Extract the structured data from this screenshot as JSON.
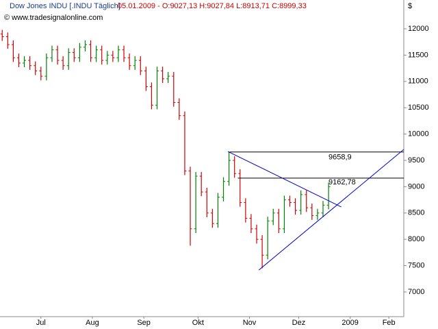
{
  "chart_data": {
    "type": "ohlc",
    "title": "Dow Jones INDU [.INDU  Täglich]",
    "subtitle": "05.01.2009 - O:9027,13 H:9027,84 L:8913,71 C:8999,33",
    "source": "© www.tradesignalonline.com",
    "y_unit": "$",
    "categories": [
      null,
      null,
      null,
      null,
      null,
      null,
      null,
      null,
      null,
      null,
      null,
      null,
      null,
      null,
      null,
      null,
      null,
      null,
      null,
      null,
      null,
      null,
      null,
      null,
      null,
      null,
      null,
      null,
      null,
      null,
      null,
      null,
      null,
      null,
      null,
      null,
      null,
      null,
      null,
      null,
      null,
      null,
      null,
      null,
      null,
      null,
      null,
      null,
      null,
      null,
      null,
      null,
      null,
      null,
      null,
      null,
      null,
      null,
      null,
      null
    ],
    "open": [
      11900,
      11850,
      11700,
      11450,
      11350,
      11400,
      11300,
      11200,
      11100,
      11450,
      11600,
      11400,
      11300,
      11550,
      11450,
      11650,
      11700,
      11450,
      11600,
      11400,
      11500,
      11450,
      11600,
      11450,
      11300,
      11400,
      11200,
      10900,
      10550,
      11200,
      11050,
      11100,
      10600,
      10350,
      9300,
      8200,
      9200,
      8900,
      8500,
      8300,
      8800,
      9100,
      9500,
      9250,
      8700,
      8400,
      8200,
      8000,
      7700,
      8350,
      8500,
      8200,
      8750,
      8700,
      8550,
      8850,
      8600,
      8450,
      8500,
      8650
    ],
    "high": [
      11980,
      11930,
      11780,
      11530,
      11480,
      11480,
      11380,
      11280,
      11530,
      11680,
      11680,
      11480,
      11630,
      11630,
      11730,
      11780,
      11780,
      11680,
      11680,
      11580,
      11580,
      11680,
      11680,
      11530,
      11480,
      11480,
      11280,
      10980,
      11280,
      11280,
      11180,
      11180,
      10680,
      10430,
      9380,
      9280,
      9280,
      8980,
      8580,
      8880,
      9180,
      9658,
      9580,
      9330,
      8780,
      8480,
      8280,
      8080,
      8430,
      8580,
      8580,
      8830,
      8830,
      8780,
      8930,
      8930,
      8680,
      8580,
      8730,
      9080
    ],
    "low": [
      11770,
      11620,
      11370,
      11270,
      11270,
      11220,
      11120,
      11020,
      11020,
      11370,
      11320,
      11220,
      11220,
      11370,
      11370,
      11570,
      11370,
      11370,
      11320,
      11320,
      11370,
      11370,
      11370,
      11220,
      11220,
      11120,
      10820,
      10470,
      10470,
      10970,
      10970,
      10520,
      10270,
      9220,
      7880,
      8120,
      8820,
      8420,
      8220,
      8220,
      8720,
      9020,
      9170,
      8620,
      8320,
      8120,
      7920,
      7450,
      7620,
      8270,
      8120,
      8120,
      8620,
      8470,
      8470,
      8520,
      8370,
      8370,
      8420,
      8570
    ],
    "close": [
      11850,
      11700,
      11450,
      11350,
      11400,
      11300,
      11200,
      11100,
      11450,
      11600,
      11400,
      11300,
      11550,
      11450,
      11650,
      11700,
      11450,
      11600,
      11400,
      11500,
      11450,
      11600,
      11450,
      11300,
      11400,
      11200,
      10900,
      10550,
      11200,
      11050,
      11100,
      10600,
      10350,
      9300,
      8200,
      9200,
      8900,
      8500,
      8300,
      8800,
      9100,
      9500,
      9250,
      8700,
      8400,
      8200,
      8000,
      7700,
      8350,
      8500,
      8200,
      8750,
      8700,
      8550,
      8850,
      8600,
      8450,
      8500,
      8650,
      9000
    ],
    "up_color": "#008000",
    "down_color": "#cc0000",
    "xlim": [
      -0.4,
      72.6
    ],
    "xticks": [
      {
        "value": 7,
        "label": "Jul"
      },
      {
        "value": 16.3,
        "label": "Aug"
      },
      {
        "value": 25.6,
        "label": "Sep"
      },
      {
        "value": 35.4,
        "label": "Okt"
      },
      {
        "value": 44.7,
        "label": "Nov"
      },
      {
        "value": 53.6,
        "label": "Dez"
      },
      {
        "value": 62.9,
        "label": "2009"
      },
      {
        "value": 69.9,
        "label": "Feb"
      }
    ],
    "ylim": [
      6531,
      12547
    ],
    "yticks": [
      7000,
      7500,
      8000,
      8500,
      9000,
      9500,
      10000,
      10500,
      11000,
      11500,
      12000
    ],
    "levels": [
      {
        "value": 9658.9,
        "label": "9658,9",
        "x": 41.1
      },
      {
        "value": 9162.78,
        "label": "9162,78",
        "x": 42.6
      }
    ],
    "trendlines": [
      {
        "x": [
          40.8,
          61.3
        ],
        "y": [
          9669,
          8615
        ]
      },
      {
        "x": [
          46.4,
          72.6
        ],
        "y": [
          7417,
          9708
        ]
      }
    ],
    "line_color": "#0000cc"
  }
}
